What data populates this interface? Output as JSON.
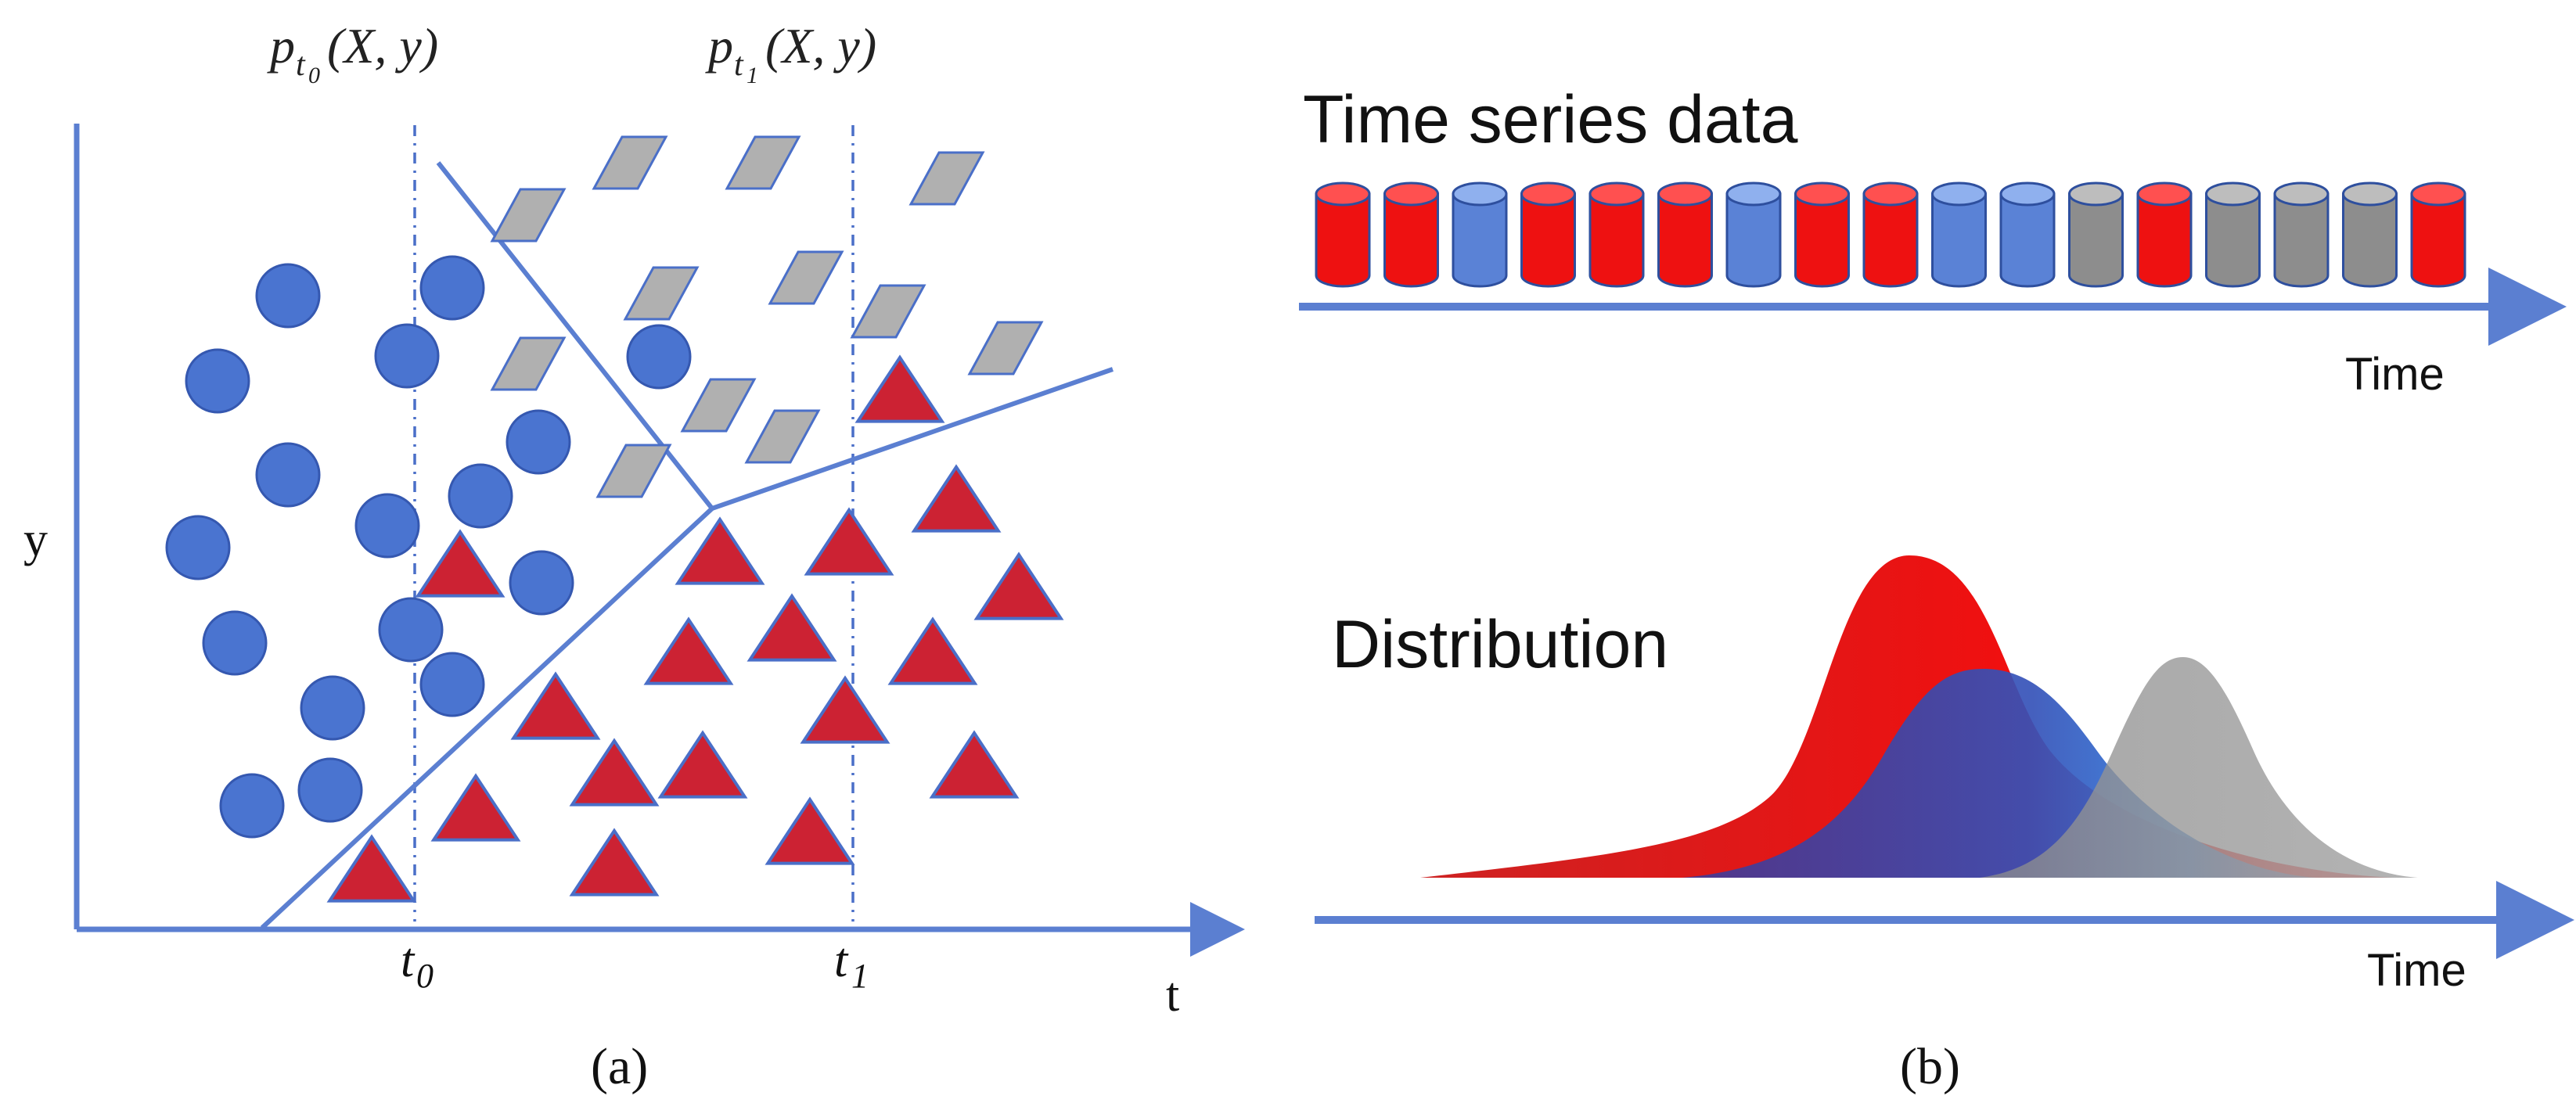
{
  "panel_a": {
    "caption": "(a)",
    "y_axis_label": "y",
    "x_axis_label": "t",
    "marker_t0": {
      "p": "p",
      "p_sub": "t",
      "p_sub_sub": "0",
      "p_args": "(X, y)",
      "tick_base": "t",
      "tick_sub": "0"
    },
    "marker_t1": {
      "p": "p",
      "p_sub": "t",
      "p_sub_sub": "1",
      "p_args": "(X, y)",
      "tick_base": "t",
      "tick_sub": "1"
    }
  },
  "panel_b": {
    "caption": "(b)",
    "series_title": "Time series data",
    "series_axis_label": "Time",
    "series_sequence": [
      "red",
      "red",
      "blue",
      "red",
      "red",
      "red",
      "blue",
      "red",
      "red",
      "blue",
      "blue",
      "gray",
      "red",
      "gray",
      "gray",
      "gray",
      "red"
    ],
    "distribution_title": "Distribution",
    "distribution_axis_label": "Time"
  },
  "colors": {
    "axis": "#5b7fd1",
    "blue": "#4a74d0",
    "red": "#cc2233",
    "gray": "#b0b0b0",
    "cyl_red": "#ee1111",
    "cyl_blue": "#5a82d6",
    "cyl_gray": "#8d8d8d",
    "dist_red": "#ee0f0f",
    "dist_blue": "#3350b8",
    "dist_gray": "#9a9a9a"
  }
}
